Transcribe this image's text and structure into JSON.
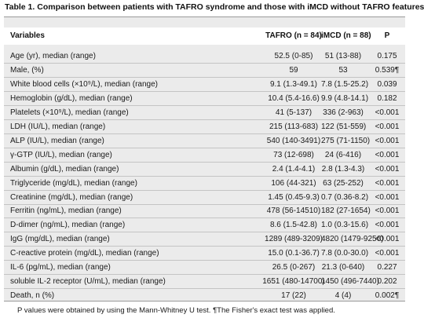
{
  "title": "Table 1. Comparison between patients with TAFRO syndrome and those with iMCD without TAFRO features",
  "table": {
    "headers": {
      "variables": "Variables",
      "tafro": "TAFRO (n = 84)",
      "imcd": "iMCD (n = 88)",
      "p": "P"
    },
    "rows": [
      {
        "variable": "Age (yr), median (range)",
        "tafro": "52.5 (0-85)",
        "imcd": "51 (13-88)",
        "p": "0.175"
      },
      {
        "variable": "Male, (%)",
        "tafro": "59",
        "imcd": "53",
        "p": "0.539¶"
      },
      {
        "variable": "White blood cells (×10⁹/L), median (range)",
        "tafro": "9.1 (1.3-49.1)",
        "imcd": "7.8  (1.5-25.2)",
        "p": "0.039"
      },
      {
        "variable": "Hemoglobin (g/dL), median (range)",
        "tafro": "10.4 (5.4-16.6)",
        "imcd": "9.9 (4.8-14.1)",
        "p": "0.182"
      },
      {
        "variable": "Platelets (×10⁹/L), median (range)",
        "tafro": "41 (5-137)",
        "imcd": "336 (2-963)",
        "p": "<0.001"
      },
      {
        "variable": "LDH (IU/L), median (range)",
        "tafro": "215 (113-683)",
        "imcd": "122 (51-559)",
        "p": "<0.001"
      },
      {
        "variable": "ALP (IU/L), median (range)",
        "tafro": "540 (140-3491)",
        "imcd": "275 (71-1150)",
        "p": "<0.001"
      },
      {
        "variable": "γ-GTP (IU/L), median (range)",
        "tafro": "73 (12-698)",
        "imcd": "24 (6-416)",
        "p": "<0.001"
      },
      {
        "variable": "Albumin (g/dL), median (range)",
        "tafro": "2.4 (1.4-4.1)",
        "imcd": "2.8 (1.3-4.3)",
        "p": "<0.001"
      },
      {
        "variable": "Triglyceride (mg/dL), median (range)",
        "tafro": "106 (44-321)",
        "imcd": "63 (25-252)",
        "p": "<0.001"
      },
      {
        "variable": "Creatinine (mg/dL), median (range)",
        "tafro": "1.45 (0.45-9.3)",
        "imcd": "0.7 (0.36-8.2)",
        "p": "<0.001"
      },
      {
        "variable": "Ferritin (ng/mL), median (range)",
        "tafro": "478 (56-14510)",
        "imcd": "182 (27-1654)",
        "p": "<0.001"
      },
      {
        "variable": "D-dimer (ng/mL), median (range)",
        "tafro": "8.6 (1.5-42.8)",
        "imcd": "1.0 (0.3-15.6)",
        "p": "<0.001"
      },
      {
        "variable": "IgG (mg/dL), median (range)",
        "tafro": "1289 (489-3209)",
        "imcd": "4820 (1479-9256)",
        "p": "<0.001"
      },
      {
        "variable": "C-reactive protein (mg/dL), median (range)",
        "tafro": "15.0 (0.1-36.7)",
        "imcd": "7.8 (0.0-30.0)",
        "p": "<0.001"
      },
      {
        "variable": "IL-6 (pg/mL), median (range)",
        "tafro": "26.5 (0-267)",
        "imcd": "21.3 (0-640)",
        "p": "0.227"
      },
      {
        "variable": "soluble IL-2 receptor (U/mL), median (range)",
        "tafro": "1651 (480-14700)",
        "imcd": "1450 (496-7440)",
        "p": "0.202"
      },
      {
        "variable": "Death, n (%)",
        "tafro": "17 (22)",
        "imcd": "4 (4)",
        "p": "0.002¶"
      }
    ]
  },
  "footnote": "P values were obtained by using the Mann-Whitney U test.  ¶The Fisher's exact test was applied."
}
